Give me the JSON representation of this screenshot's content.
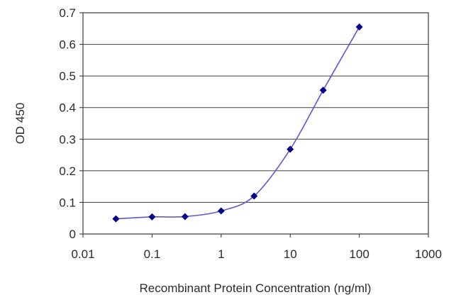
{
  "chart_data": {
    "type": "line",
    "title": "",
    "xlabel": "Recombinant Protein Concentration (ng/ml)",
    "ylabel": "OD 450",
    "x_scale": "log",
    "xlim": [
      0.01,
      1000
    ],
    "ylim": [
      0,
      0.7
    ],
    "x_ticks": [
      "0.01",
      "0.1",
      "1",
      "10",
      "100",
      "1000"
    ],
    "y_ticks": [
      "0",
      "0.1",
      "0.2",
      "0.3",
      "0.4",
      "0.5",
      "0.6",
      "0.7"
    ],
    "grid": "horizontal",
    "legend": "none",
    "series": [
      {
        "color": "#00008b",
        "x": [
          0.03,
          0.1,
          0.3,
          1,
          3,
          10,
          30,
          100
        ],
        "y": [
          0.048,
          0.054,
          0.055,
          0.073,
          0.12,
          0.268,
          0.455,
          0.655
        ]
      }
    ]
  }
}
